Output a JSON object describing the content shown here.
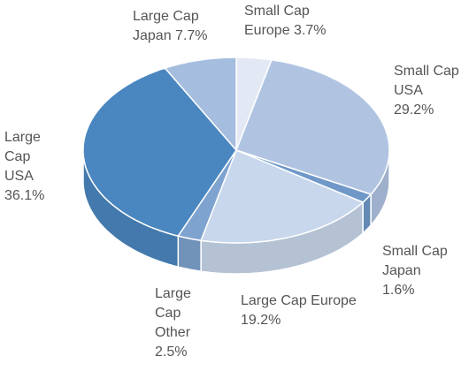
{
  "chart_data": {
    "type": "pie3d",
    "categories": [
      "Small Cap Europe",
      "Small Cap USA",
      "Small Cap Japan",
      "Large Cap Europe",
      "Large Cap Other",
      "Large Cap USA",
      "Large Cap Japan"
    ],
    "values": [
      3.7,
      29.2,
      1.6,
      19.2,
      2.5,
      36.1,
      7.7
    ],
    "value_labels": [
      "3.7%",
      "29.2%",
      "1.6%",
      "19.2%",
      "2.5%",
      "36.1%",
      "7.7%"
    ],
    "colors": [
      "#e3e9f4",
      "#b0c4e2",
      "#6f98c8",
      "#c8d7ec",
      "#7ea3cf",
      "#4a86bf",
      "#a5bddf"
    ]
  }
}
